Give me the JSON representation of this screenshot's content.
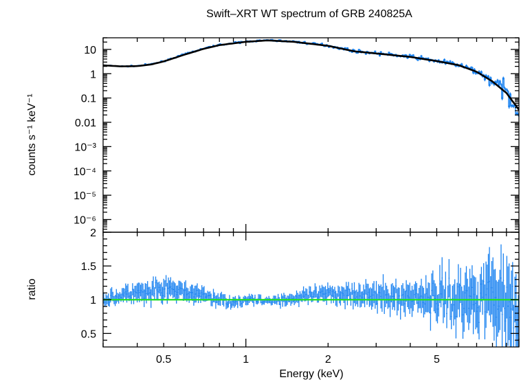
{
  "chart_data": {
    "title": "Swift–XRT WT spectrum of GRB 240825A",
    "xlabel": "Energy (keV)",
    "type": "line",
    "x_scale": "log",
    "xlim": [
      0.3,
      10
    ],
    "x_ticks": [
      {
        "value": 0.5,
        "label": "0.5"
      },
      {
        "value": 1,
        "label": "1"
      },
      {
        "value": 2,
        "label": "2"
      },
      {
        "value": 5,
        "label": "5"
      }
    ],
    "colors": {
      "data": "#1a82f0",
      "model": "#000000",
      "ratio_line": "#22e022"
    },
    "panels": [
      {
        "name": "spectrum",
        "ylabel": "counts s⁻¹ keV⁻¹",
        "y_scale": "log",
        "ylim": [
          3e-07,
          30
        ],
        "y_ticks": [
          {
            "value": 10,
            "label": "10"
          },
          {
            "value": 1,
            "label": "1"
          },
          {
            "value": 0.1,
            "label": "0.1"
          },
          {
            "value": 0.01,
            "label": "0.01"
          },
          {
            "value": 0.001,
            "label": "10⁻³"
          },
          {
            "value": 0.0001,
            "label": "10⁻⁴"
          },
          {
            "value": 1e-05,
            "label": "10⁻⁵"
          },
          {
            "value": 1e-06,
            "label": "10⁻⁶"
          }
        ],
        "series": [
          {
            "kind": "data",
            "x": [
              0.3,
              0.35,
              0.4,
              0.45,
              0.5,
              0.6,
              0.7,
              0.8,
              1.0,
              1.2,
              1.5,
              2.0,
              2.5,
              3.0,
              4.0,
              5.0,
              6.0,
              7.0,
              8.0,
              9.0,
              10.0
            ],
            "y": [
              2.2,
              2.0,
              2.1,
              2.5,
              3.3,
              6.5,
              11.0,
              15.5,
              21.0,
              24.0,
              21.0,
              14.5,
              8.5,
              7.0,
              5.0,
              3.4,
              2.3,
              1.25,
              0.5,
              0.17,
              0.035
            ]
          },
          {
            "kind": "model",
            "x": [
              0.3,
              0.35,
              0.4,
              0.45,
              0.5,
              0.6,
              0.7,
              0.8,
              1.0,
              1.2,
              1.5,
              2.0,
              2.5,
              3.0,
              4.0,
              5.0,
              6.0,
              7.0,
              8.0,
              9.0,
              10.0
            ],
            "y": [
              2.2,
              2.0,
              2.05,
              2.4,
              3.2,
              6.2,
              10.5,
              15.0,
              20.5,
              23.5,
              20.5,
              14.0,
              8.3,
              6.8,
              4.9,
              3.3,
              2.25,
              1.2,
              0.48,
              0.16,
              0.033
            ]
          }
        ]
      },
      {
        "name": "ratio",
        "ylabel": "ratio",
        "y_scale": "linear",
        "ylim": [
          0.3,
          2
        ],
        "y_ticks": [
          {
            "value": 0.5,
            "label": "0.5"
          },
          {
            "value": 1,
            "label": "1"
          },
          {
            "value": 1.5,
            "label": "1.5"
          },
          {
            "value": 2,
            "label": "2"
          }
        ],
        "reference_line": 1,
        "series": [
          {
            "kind": "ratio",
            "x": [
              0.3,
              0.35,
              0.4,
              0.45,
              0.5,
              0.6,
              0.7,
              0.8,
              0.9,
              1.0,
              1.2,
              1.5,
              2.0,
              2.5,
              3.0,
              4.0,
              5.0,
              6.0,
              7.0,
              8.0,
              9.0,
              10.0
            ],
            "y": [
              1.0,
              1.05,
              1.1,
              1.08,
              1.15,
              1.12,
              1.05,
              1.0,
              0.97,
              1.0,
              0.98,
              1.02,
              1.08,
              1.1,
              1.05,
              1.02,
              1.05,
              1.0,
              1.05,
              1.1,
              1.0,
              0.9
            ],
            "scatter": [
              0.08,
              0.1,
              0.12,
              0.13,
              0.14,
              0.12,
              0.1,
              0.08,
              0.07,
              0.06,
              0.06,
              0.08,
              0.1,
              0.14,
              0.15,
              0.2,
              0.25,
              0.3,
              0.38,
              0.45,
              0.5,
              0.55
            ]
          }
        ]
      }
    ]
  }
}
